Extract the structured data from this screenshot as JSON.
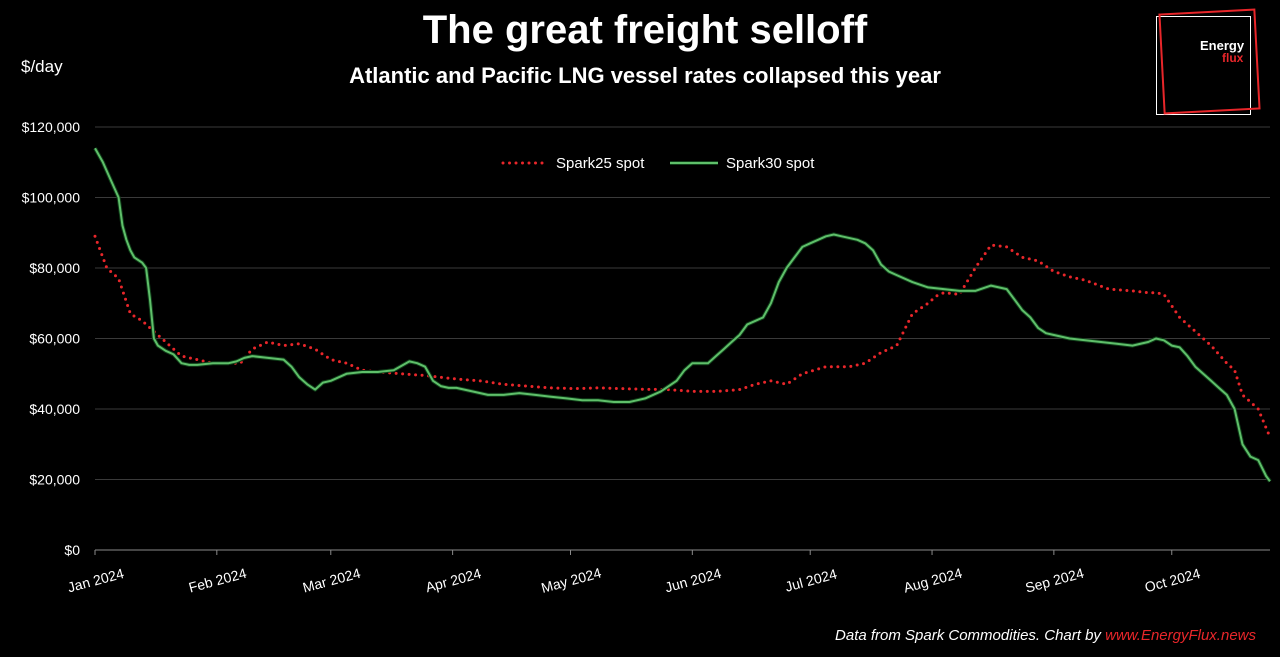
{
  "header": {
    "title": "The great freight selloff",
    "subtitle": "Atlantic and Pacific LNG vessel rates collapsed this year",
    "ylabel": "$/day"
  },
  "logo": {
    "line1": "Energy",
    "line2": "flux"
  },
  "footer": {
    "source_text": "Data from Spark Commodities. Chart by",
    "link_text": "www.EnergyFlux.news"
  },
  "colors": {
    "spark25": "#e8262a",
    "spark30": "#5fbf6a",
    "grid": "#3a3a3a",
    "background": "#000000"
  },
  "chart_data": {
    "type": "line",
    "title": "The great freight selloff",
    "subtitle": "Atlantic and Pacific LNG vessel rates collapsed this year",
    "ylabel": "$/day",
    "xlabel": "",
    "ylim": [
      0,
      120000
    ],
    "xlim": [
      0,
      299
    ],
    "yticks": [
      0,
      20000,
      40000,
      60000,
      80000,
      100000,
      120000
    ],
    "ytick_labels": [
      "$0",
      "$20,000",
      "$40,000",
      "$60,000",
      "$80,000",
      "$100,000",
      "$120,000"
    ],
    "xticks": [
      0,
      31,
      60,
      91,
      121,
      152,
      182,
      213,
      244,
      274
    ],
    "xtick_labels": [
      "Jan 2024",
      "Feb 2024",
      "Mar 2024",
      "Apr 2024",
      "May 2024",
      "Jun 2024",
      "Jul 2024",
      "Aug 2024",
      "Sep 2024",
      "Oct 2024"
    ],
    "legend": "top-center",
    "series": [
      {
        "name": "Spark25 spot",
        "style": "dotted",
        "x": [
          0,
          3,
          6,
          9,
          12,
          15,
          18,
          22,
          26,
          30,
          34,
          37,
          40,
          44,
          48,
          52,
          56,
          60,
          64,
          68,
          72,
          78,
          84,
          88,
          92,
          98,
          104,
          110,
          116,
          122,
          128,
          134,
          140,
          146,
          152,
          158,
          164,
          168,
          172,
          176,
          180,
          186,
          192,
          196,
          200,
          204,
          208,
          212,
          214,
          216,
          220,
          224,
          228,
          232,
          236,
          240,
          244,
          248,
          252,
          258,
          264,
          268,
          270,
          272,
          276,
          280,
          284,
          288,
          290,
          292,
          296,
          299
        ],
        "values": [
          89000,
          80000,
          77000,
          67000,
          65000,
          62000,
          59000,
          55000,
          54000,
          53000,
          53000,
          53000,
          57000,
          59000,
          58000,
          58500,
          57000,
          54000,
          53000,
          51000,
          50500,
          50000,
          49500,
          49000,
          48500,
          48000,
          47000,
          46500,
          46000,
          45800,
          46000,
          45800,
          45600,
          45500,
          45000,
          45000,
          45500,
          47000,
          48000,
          47000,
          50000,
          52000,
          52000,
          53000,
          56000,
          58000,
          67000,
          70000,
          72000,
          73000,
          72500,
          80000,
          86500,
          86000,
          83000,
          82000,
          79000,
          77500,
          76500,
          74000,
          73500,
          73000,
          73000,
          72500,
          66000,
          62000,
          58000,
          53000,
          51000,
          44000,
          40000,
          32000
        ]
      },
      {
        "name": "Spark30 spot",
        "style": "solid",
        "x": [
          0,
          2,
          4,
          6,
          7,
          8,
          9,
          10,
          12,
          13,
          14,
          15,
          16,
          18,
          20,
          22,
          24,
          26,
          30,
          34,
          36,
          38,
          40,
          44,
          48,
          50,
          52,
          54,
          56,
          58,
          60,
          64,
          68,
          72,
          76,
          80,
          82,
          84,
          86,
          88,
          90,
          92,
          96,
          100,
          104,
          108,
          112,
          116,
          120,
          124,
          128,
          132,
          136,
          140,
          144,
          148,
          150,
          152,
          154,
          156,
          158,
          160,
          162,
          164,
          166,
          168,
          170,
          172,
          174,
          176,
          178,
          180,
          182,
          184,
          186,
          188,
          190,
          194,
          196,
          198,
          200,
          202,
          204,
          208,
          212,
          216,
          220,
          224,
          228,
          232,
          234,
          236,
          238,
          240,
          242,
          244,
          248,
          252,
          256,
          260,
          264,
          268,
          270,
          272,
          274,
          276,
          278,
          280,
          282,
          284,
          286,
          288,
          290,
          292,
          294,
          296,
          298,
          299
        ],
        "values": [
          114000,
          110000,
          105000,
          100000,
          92000,
          88000,
          85000,
          83000,
          81500,
          80000,
          71000,
          60000,
          58000,
          56500,
          55500,
          53000,
          52500,
          52500,
          53000,
          53000,
          53500,
          54500,
          55000,
          54500,
          54000,
          52000,
          49000,
          47000,
          45500,
          47500,
          48000,
          50000,
          50500,
          50500,
          51000,
          53500,
          53000,
          52000,
          48000,
          46500,
          46000,
          46000,
          45000,
          44000,
          44000,
          44500,
          44000,
          43500,
          43000,
          42500,
          42500,
          42000,
          42000,
          43000,
          45000,
          48000,
          51000,
          53000,
          53000,
          53000,
          55000,
          57000,
          59000,
          61000,
          64000,
          65000,
          66000,
          70000,
          76000,
          80000,
          83000,
          86000,
          87000,
          88000,
          89000,
          89500,
          89000,
          88000,
          87000,
          85000,
          81000,
          79000,
          78000,
          76000,
          74500,
          74000,
          73500,
          73500,
          75000,
          74000,
          71000,
          68000,
          66000,
          63000,
          61500,
          61000,
          60000,
          59500,
          59000,
          58500,
          58000,
          59000,
          60000,
          59500,
          58000,
          57500,
          55000,
          52000,
          50000,
          48000,
          46000,
          44000,
          40000,
          30000,
          26500,
          25500,
          21000,
          19500
        ]
      }
    ]
  }
}
